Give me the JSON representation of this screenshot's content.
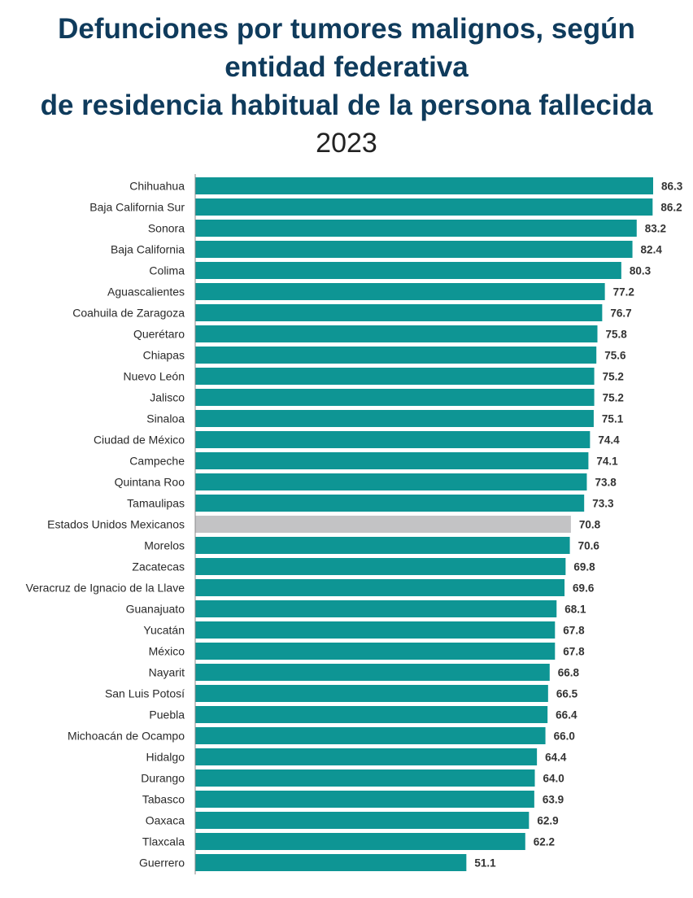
{
  "title": {
    "lines": [
      "Defunciones por tumores malignos, según",
      "entidad federativa",
      "de residencia habitual de la persona fallecida"
    ],
    "subtitle": "2023"
  },
  "colors": {
    "bar": "#0e9594",
    "national_bar": "#c3c3c5",
    "title": "#0f3b5c",
    "axis": "#8a8a8a"
  },
  "chart_data": {
    "type": "bar",
    "orientation": "horizontal",
    "title": "Defunciones por tumores malignos, según entidad federativa de residencia habitual de la persona fallecida",
    "subtitle": "2023",
    "xlabel": "",
    "ylabel": "",
    "xlim": [
      0,
      86.3
    ],
    "grid": false,
    "legend": "none",
    "highlight_category": "Estados Unidos Mexicanos",
    "categories": [
      "Chihuahua",
      "Baja California Sur",
      "Sonora",
      "Baja California",
      "Colima",
      "Aguascalientes",
      "Coahuila de Zaragoza",
      "Querétaro",
      "Chiapas",
      "Nuevo León",
      "Jalisco",
      "Sinaloa",
      "Ciudad de México",
      "Campeche",
      "Quintana Roo",
      "Tamaulipas",
      "Estados Unidos Mexicanos",
      "Morelos",
      "Zacatecas",
      "Veracruz de Ignacio de la Llave",
      "Guanajuato",
      "Yucatán",
      "México",
      "Nayarit",
      "San Luis Potosí",
      "Puebla",
      "Michoacán de Ocampo",
      "Hidalgo",
      "Durango",
      "Tabasco",
      "Oaxaca",
      "Tlaxcala",
      "Guerrero"
    ],
    "values": [
      86.3,
      86.2,
      83.2,
      82.4,
      80.3,
      77.2,
      76.7,
      75.8,
      75.6,
      75.2,
      75.2,
      75.1,
      74.4,
      74.1,
      73.8,
      73.3,
      70.8,
      70.6,
      69.8,
      69.6,
      68.1,
      67.8,
      67.8,
      66.8,
      66.5,
      66.4,
      66.0,
      64.4,
      64.0,
      63.9,
      62.9,
      62.2,
      51.1
    ],
    "value_labels": [
      "86.3",
      "86.2",
      "83.2",
      "82.4",
      "80.3",
      "77.2",
      "76.7",
      "75.8",
      "75.6",
      "75.2",
      "75.2",
      "75.1",
      "74.4",
      "74.1",
      "73.8",
      "73.3",
      "70.8",
      "70.6",
      "69.8",
      "69.6",
      "68.1",
      "67.8",
      "67.8",
      "66.8",
      "66.5",
      "66.4",
      "66.0",
      "64.4",
      "64.0",
      "63.9",
      "62.9",
      "62.2",
      "51.1"
    ]
  }
}
